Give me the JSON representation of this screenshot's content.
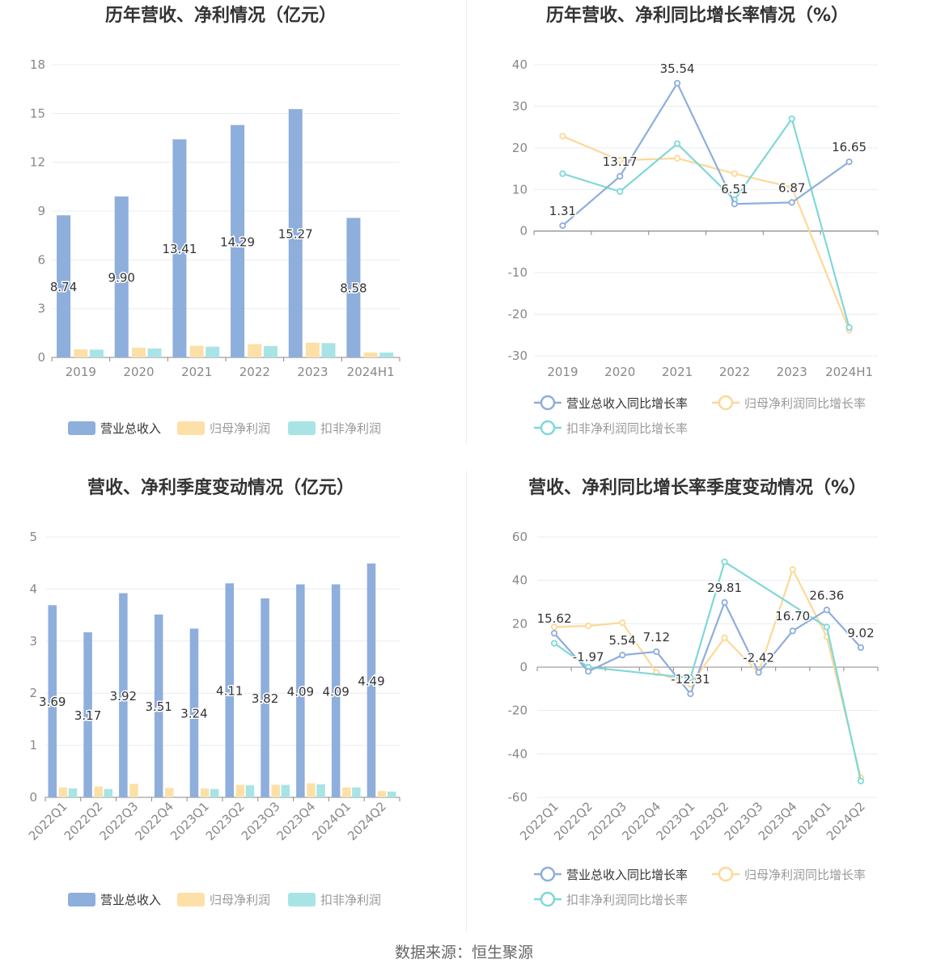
{
  "colors": {
    "revenue": "#8eaedc",
    "net_profit": "#fde0a8",
    "deducted": "#a8e4e6",
    "revenue_line": "#8eaedc",
    "net_line": "#fdd898",
    "deducted_line": "#7fd8d8",
    "axis_text": "#888888",
    "grid": "#e8ecf4",
    "title": "#333333",
    "label": "#333333"
  },
  "footer": {
    "source": "数据来源：恒生聚源"
  },
  "chart_data": [
    {
      "type": "bar",
      "title": "历年营收、净利情况（亿元）",
      "categories": [
        "2019",
        "2020",
        "2021",
        "2022",
        "2023",
        "2024H1"
      ],
      "ylim": [
        0,
        18
      ],
      "yticks": [
        0,
        3,
        6,
        9,
        12,
        15,
        18
      ],
      "grid": true,
      "legend_position": "bottom",
      "series": [
        {
          "name": "营业总收入",
          "values": [
            8.74,
            9.9,
            13.41,
            14.29,
            15.27,
            8.58
          ],
          "labels": [
            "8.74",
            "9.90",
            "13.41",
            "14.29",
            "15.27",
            "8.58"
          ]
        },
        {
          "name": "归母净利润",
          "values": [
            0.5,
            0.6,
            0.72,
            0.82,
            0.91,
            0.3
          ]
        },
        {
          "name": "扣非净利润",
          "values": [
            0.48,
            0.55,
            0.66,
            0.7,
            0.88,
            0.3
          ]
        }
      ]
    },
    {
      "type": "line",
      "title": "历年营收、净利同比增长率情况（%）",
      "categories": [
        "2019",
        "2020",
        "2021",
        "2022",
        "2023",
        "2024H1"
      ],
      "ylim": [
        -30,
        40
      ],
      "yticks": [
        -30,
        -20,
        -10,
        0,
        10,
        20,
        30,
        40
      ],
      "grid": true,
      "legend_position": "bottom",
      "series": [
        {
          "name": "营业总收入同比增长率",
          "values": [
            1.31,
            13.17,
            35.54,
            6.51,
            6.87,
            16.65
          ],
          "labels": [
            "1.31",
            "13.17",
            "35.54",
            "6.51",
            "6.87",
            "16.65"
          ]
        },
        {
          "name": "归母净利润同比增长率",
          "values": [
            22.8,
            17.0,
            17.5,
            13.8,
            10.5,
            -23.8
          ]
        },
        {
          "name": "扣非净利润同比增长率",
          "values": [
            13.8,
            9.5,
            21.0,
            7.5,
            27.0,
            -23.2
          ]
        }
      ]
    },
    {
      "type": "bar",
      "title": "营收、净利季度变动情况（亿元）",
      "categories": [
        "2022Q1",
        "2022Q2",
        "2022Q3",
        "2022Q4",
        "2023Q1",
        "2023Q2",
        "2023Q3",
        "2023Q4",
        "2024Q1",
        "2024Q2"
      ],
      "ylim": [
        0,
        5
      ],
      "yticks": [
        0,
        1,
        2,
        3,
        4,
        5
      ],
      "grid": true,
      "legend_position": "bottom",
      "series": [
        {
          "name": "营业总收入",
          "values": [
            3.69,
            3.17,
            3.92,
            3.51,
            3.24,
            4.11,
            3.82,
            4.09,
            4.09,
            4.49
          ],
          "labels": [
            "3.69",
            "3.17",
            "3.92",
            "3.51",
            "3.24",
            "4.11",
            "3.82",
            "4.09",
            "4.09",
            "4.49"
          ]
        },
        {
          "name": "归母净利润",
          "values": [
            0.19,
            0.21,
            0.26,
            0.18,
            0.17,
            0.24,
            0.24,
            0.27,
            0.19,
            0.12
          ]
        },
        {
          "name": "扣非净利润",
          "values": [
            0.17,
            0.16,
            0.0,
            0.0,
            0.16,
            0.23,
            0.24,
            0.25,
            0.19,
            0.11
          ]
        }
      ]
    },
    {
      "type": "line",
      "title": "营收、净利同比增长率季度变动情况（%）",
      "categories": [
        "2022Q1",
        "2022Q2",
        "2022Q3",
        "2022Q4",
        "2023Q1",
        "2023Q2",
        "2023Q3",
        "2023Q4",
        "2024Q1",
        "2024Q2"
      ],
      "ylim": [
        -60,
        60
      ],
      "yticks": [
        -60,
        -40,
        -20,
        0,
        20,
        40,
        60
      ],
      "grid": true,
      "legend_position": "bottom",
      "series": [
        {
          "name": "营业总收入同比增长率",
          "values": [
            15.62,
            -1.97,
            5.54,
            7.12,
            -12.31,
            29.81,
            -2.42,
            16.7,
            26.36,
            9.02
          ],
          "labels": [
            "15.62",
            "-1.97",
            "5.54",
            "7.12",
            "-12.31",
            "29.81",
            "-2.42",
            "16.70",
            "26.36",
            "9.02"
          ]
        },
        {
          "name": "归母净利润同比增长率",
          "values": [
            18.5,
            19.0,
            20.5,
            -2.5,
            -8.0,
            13.5,
            -2.5,
            45.0,
            14.0,
            -51.0
          ]
        },
        {
          "name": "扣非净利润同比增长率",
          "values": [
            11.0,
            0.0,
            null,
            null,
            -5.0,
            48.5,
            null,
            null,
            18.5,
            -52.5
          ]
        }
      ]
    }
  ]
}
